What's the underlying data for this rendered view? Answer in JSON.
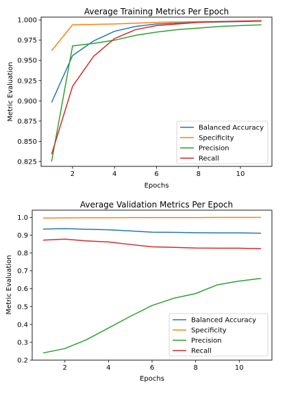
{
  "chart_data": [
    {
      "type": "line",
      "title": "Average Training Metrics Per Epoch",
      "xlabel": "Epochs",
      "ylabel": "Metric Evaluation",
      "x": [
        1,
        2,
        3,
        4,
        5,
        6,
        7,
        8,
        9,
        10,
        11
      ],
      "xlim": [
        0.5,
        11.5
      ],
      "ylim": [
        0.819,
        1.0035
      ],
      "xticks": [
        2,
        4,
        6,
        8,
        10
      ],
      "xtick_labels": [
        "2",
        "4",
        "6",
        "8",
        "10"
      ],
      "yticks": [
        0.825,
        0.85,
        0.875,
        0.9,
        0.925,
        0.95,
        0.975,
        1.0
      ],
      "ytick_labels": [
        "0.825",
        "0.850",
        "0.875",
        "0.900",
        "0.925",
        "0.950",
        "0.975",
        "1.000"
      ],
      "legend_position": "lower-right",
      "grid": false,
      "series": [
        {
          "name": "Balanced Accuracy",
          "color": "#1f77b4",
          "values": [
            0.898,
            0.956,
            0.974,
            0.986,
            0.992,
            0.995,
            0.996,
            0.997,
            0.9975,
            0.998,
            0.9985
          ]
        },
        {
          "name": "Specificity",
          "color": "#ff7f0e",
          "values": [
            0.962,
            0.994,
            0.9945,
            0.995,
            0.996,
            0.997,
            0.9975,
            0.998,
            0.998,
            0.9985,
            0.999
          ]
        },
        {
          "name": "Precision",
          "color": "#2ca02c",
          "values": [
            0.825,
            0.968,
            0.971,
            0.975,
            0.981,
            0.985,
            0.988,
            0.99,
            0.992,
            0.993,
            0.994
          ]
        },
        {
          "name": "Recall",
          "color": "#d62728",
          "values": [
            0.834,
            0.918,
            0.955,
            0.977,
            0.988,
            0.993,
            0.995,
            0.997,
            0.998,
            0.9985,
            0.999
          ]
        }
      ]
    },
    {
      "type": "line",
      "title": "Average Validation Metrics Per Epoch",
      "xlabel": "Epochs",
      "ylabel": "Metric Evaluation",
      "x": [
        1,
        2,
        3,
        4,
        5,
        6,
        7,
        8,
        9,
        10,
        11
      ],
      "xlim": [
        0.5,
        11.5
      ],
      "ylim": [
        0.2,
        1.04
      ],
      "xticks": [
        2,
        4,
        6,
        8,
        10
      ],
      "xtick_labels": [
        "2",
        "4",
        "6",
        "8",
        "10"
      ],
      "yticks": [
        0.2,
        0.3,
        0.4,
        0.5,
        0.6,
        0.7,
        0.8,
        0.9,
        1.0
      ],
      "ytick_labels": [
        "0.2",
        "0.3",
        "0.4",
        "0.5",
        "0.6",
        "0.7",
        "0.8",
        "0.9",
        "1.0"
      ],
      "legend_position": "lower-right",
      "grid": false,
      "series": [
        {
          "name": "Balanced Accuracy",
          "color": "#1f77b4",
          "values": [
            0.934,
            0.937,
            0.933,
            0.93,
            0.924,
            0.917,
            0.916,
            0.914,
            0.913,
            0.913,
            0.911
          ]
        },
        {
          "name": "Specificity",
          "color": "#ff7f0e",
          "values": [
            0.996,
            0.997,
            0.998,
            0.998,
            0.999,
            0.999,
            0.999,
            0.999,
            0.9995,
            0.9995,
            0.9995
          ]
        },
        {
          "name": "Precision",
          "color": "#2ca02c",
          "values": [
            0.24,
            0.265,
            0.315,
            0.38,
            0.445,
            0.506,
            0.547,
            0.573,
            0.622,
            0.643,
            0.658
          ]
        },
        {
          "name": "Recall",
          "color": "#d62728",
          "values": [
            0.872,
            0.878,
            0.868,
            0.862,
            0.848,
            0.835,
            0.832,
            0.828,
            0.827,
            0.827,
            0.824
          ]
        }
      ]
    }
  ]
}
